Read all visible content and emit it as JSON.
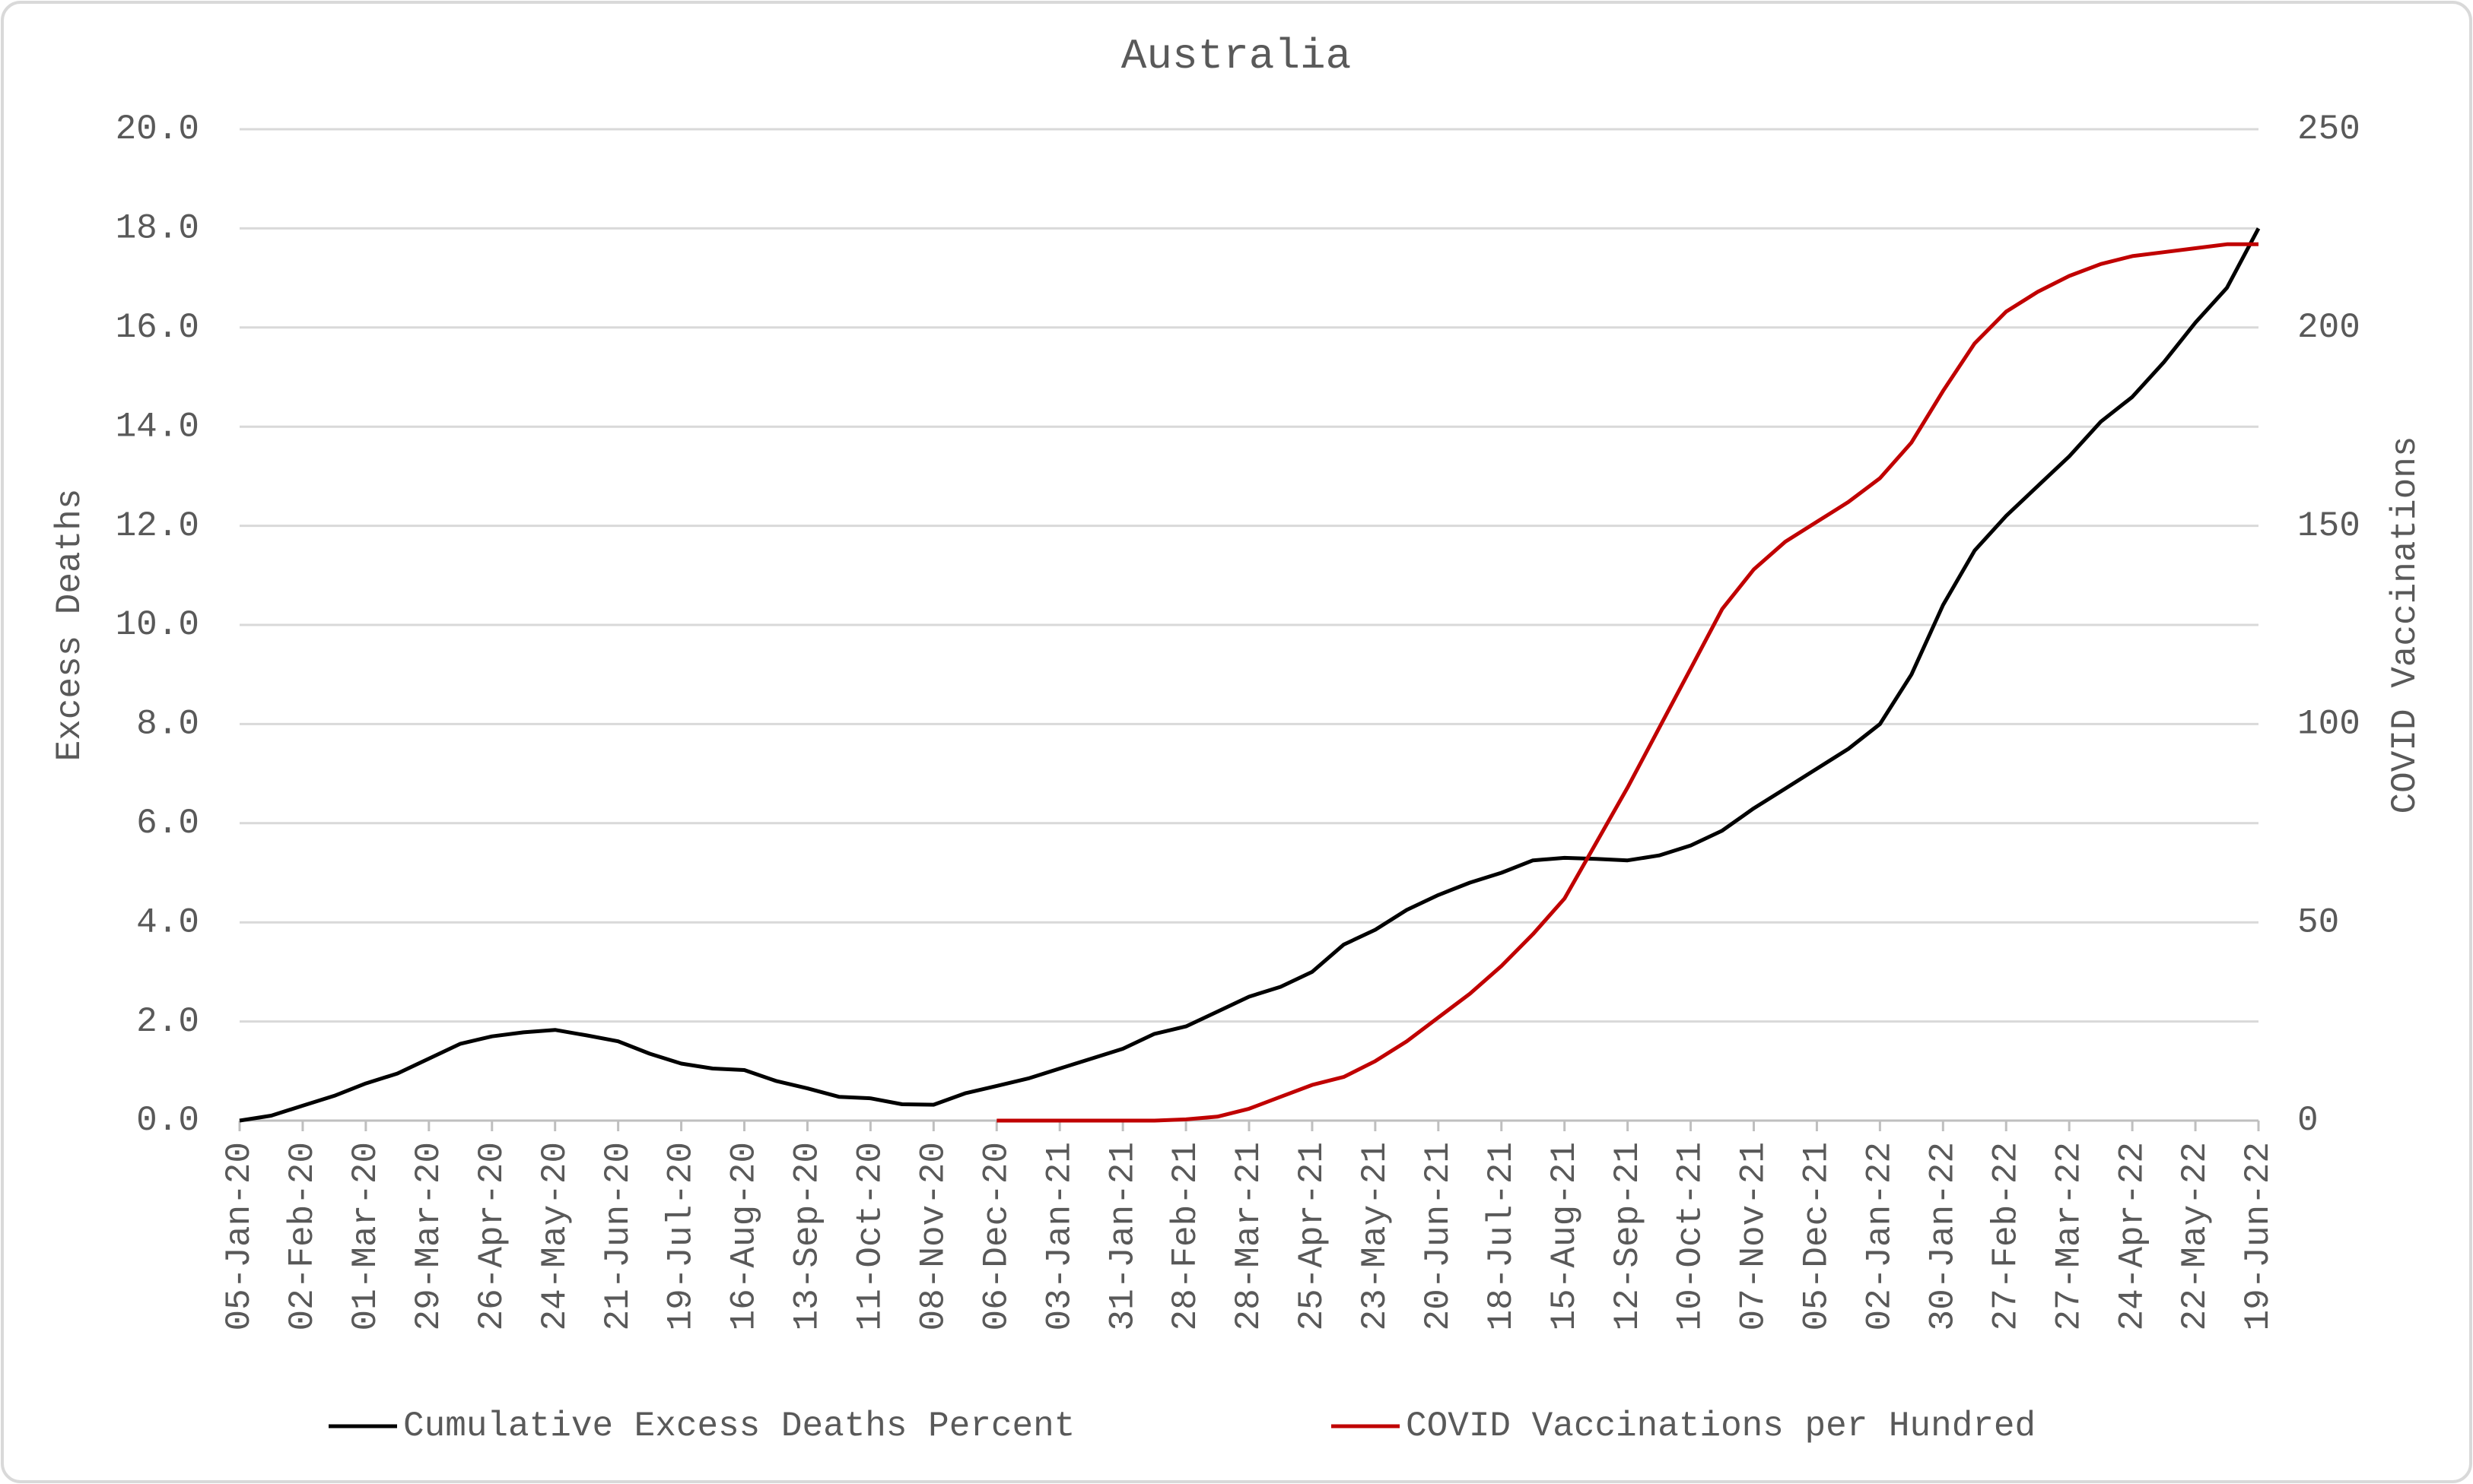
{
  "chart_data": {
    "type": "line",
    "title": "Australia",
    "y_label": "Excess Deaths",
    "y2_label": "COVID Vaccinations",
    "categories": [
      "05-Jan-20",
      null,
      "02-Feb-20",
      null,
      "01-Mar-20",
      null,
      "29-Mar-20",
      null,
      "26-Apr-20",
      null,
      "24-May-20",
      null,
      "21-Jun-20",
      null,
      "19-Jul-20",
      null,
      "16-Aug-20",
      null,
      "13-Sep-20",
      null,
      "11-Oct-20",
      null,
      "08-Nov-20",
      null,
      "06-Dec-20",
      null,
      "03-Jan-21",
      null,
      "31-Jan-21",
      null,
      "28-Feb-21",
      null,
      "28-Mar-21",
      null,
      "25-Apr-21",
      null,
      "23-May-21",
      null,
      "20-Jun-21",
      null,
      "18-Jul-21",
      null,
      "15-Aug-21",
      null,
      "12-Sep-21",
      null,
      "10-Oct-21",
      null,
      "07-Nov-21",
      null,
      "05-Dec-21",
      null,
      "02-Jan-22",
      null,
      "30-Jan-22",
      null,
      "27-Feb-22",
      null,
      "27-Mar-22",
      null,
      "24-Apr-22",
      null,
      "22-May-22",
      null,
      "19-Jun-22"
    ],
    "series": [
      {
        "name": "Cumulative Excess Deaths Percent",
        "color": "#000000",
        "axis": "y",
        "values": [
          0.0,
          0.1,
          0.3,
          0.5,
          0.75,
          0.95,
          1.25,
          1.55,
          1.7,
          1.78,
          1.83,
          1.72,
          1.6,
          1.35,
          1.15,
          1.05,
          1.02,
          0.8,
          0.65,
          0.48,
          0.45,
          0.33,
          0.32,
          0.55,
          0.7,
          0.85,
          1.05,
          1.25,
          1.45,
          1.75,
          1.9,
          2.2,
          2.5,
          2.7,
          3.0,
          3.55,
          3.85,
          4.25,
          4.55,
          4.8,
          5.0,
          5.25,
          5.3,
          5.28,
          5.25,
          5.35,
          5.55,
          5.85,
          6.3,
          6.7,
          7.1,
          7.5,
          8.0,
          9.0,
          10.4,
          11.5,
          12.2,
          12.8,
          13.4,
          14.1,
          14.6,
          15.3,
          16.1,
          16.8,
          18.0
        ]
      },
      {
        "name": "COVID Vaccinations per Hundred",
        "color": "#c00000",
        "axis": "y2",
        "values": [
          null,
          null,
          null,
          null,
          null,
          null,
          null,
          null,
          null,
          null,
          null,
          null,
          null,
          null,
          null,
          null,
          null,
          null,
          null,
          null,
          null,
          null,
          null,
          null,
          0,
          0,
          0,
          0,
          0,
          0,
          0.3,
          1,
          3,
          6,
          9,
          11,
          15,
          20,
          26,
          32,
          39,
          47,
          56,
          70,
          84,
          99,
          114,
          129,
          139,
          146,
          151,
          156,
          162,
          171,
          184,
          196,
          204,
          209,
          213,
          216,
          218,
          219,
          220,
          221,
          221
        ]
      }
    ],
    "ylim": [
      0,
      20
    ],
    "yticks": [
      {
        "value": 0,
        "label": "0.0"
      },
      {
        "value": 2,
        "label": "2.0"
      },
      {
        "value": 4,
        "label": "4.0"
      },
      {
        "value": 6,
        "label": "6.0"
      },
      {
        "value": 8,
        "label": "8.0"
      },
      {
        "value": 10,
        "label": "10.0"
      },
      {
        "value": 12,
        "label": "12.0"
      },
      {
        "value": 14,
        "label": "14.0"
      },
      {
        "value": 16,
        "label": "16.0"
      },
      {
        "value": 18,
        "label": "18.0"
      },
      {
        "value": 20,
        "label": "20.0"
      }
    ],
    "y2lim": [
      0,
      250
    ],
    "y2ticks": [
      0,
      50,
      100,
      150,
      200,
      250
    ],
    "grid": true,
    "legend": "bottom"
  }
}
